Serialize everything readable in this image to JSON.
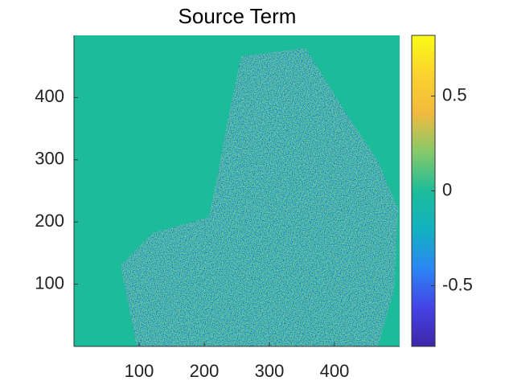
{
  "chart_data": {
    "type": "heatmap",
    "title": "Source Term",
    "xlim": [
      0,
      500
    ],
    "xticks": [
      100,
      200,
      300,
      400
    ],
    "ylim": [
      0,
      500
    ],
    "yticks": [
      100,
      200,
      300,
      400
    ],
    "colorbar": {
      "clim": [
        -0.82,
        0.82
      ],
      "ticks": [
        -0.5,
        0,
        0.5
      ]
    },
    "colormap": [
      "#3e26a8",
      "#4443e6",
      "#2b86f4",
      "#13b1c0",
      "#1cbc9a",
      "#86c96a",
      "#f1ba3d",
      "#fbd32e",
      "#f9fb15"
    ]
  }
}
